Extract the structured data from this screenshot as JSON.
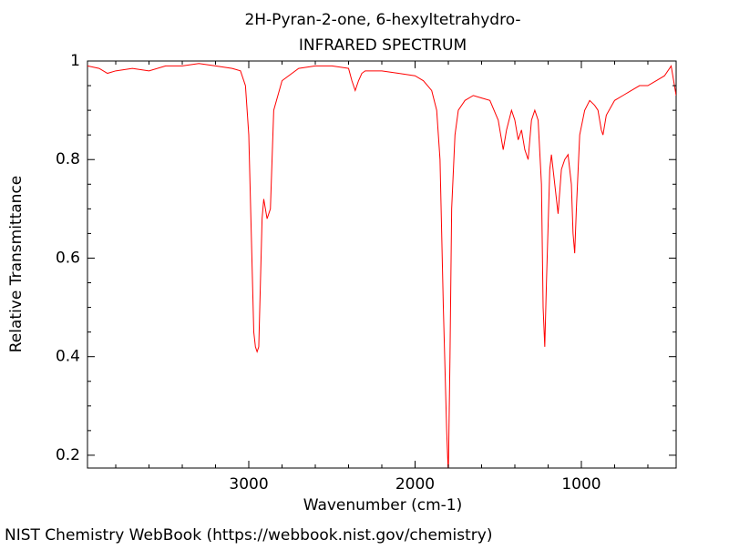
{
  "chart_data": {
    "type": "line",
    "title": "2H-Pyran-2-one, 6-hexyltetrahydro-",
    "subtitle": "INFRARED SPECTRUM",
    "x_label": "Wavenumber (cm-1)",
    "y_label": "Relative Transmittance",
    "footer": "NIST Chemistry WebBook (https://webbook.nist.gov/chemistry)",
    "xlim": [
      3970,
      430
    ],
    "ylim": [
      0.174,
      1
    ],
    "xticks": [
      3000,
      2000,
      1000
    ],
    "yticks": [
      0.2,
      0.4,
      0.6,
      0.8,
      1
    ],
    "xminorticks": [
      3800,
      3600,
      3400,
      3200,
      2800,
      2600,
      2400,
      2200,
      1800,
      1600,
      1400,
      1200,
      800,
      600
    ],
    "yminorticks": [
      0.25,
      0.3,
      0.35,
      0.45,
      0.5,
      0.55,
      0.65,
      0.7,
      0.75,
      0.85,
      0.9,
      0.95
    ],
    "series": [
      {
        "color": "#ff0000",
        "x": [
          3970,
          3900,
          3850,
          3800,
          3700,
          3600,
          3500,
          3400,
          3300,
          3200,
          3100,
          3050,
          3020,
          3000,
          2985,
          2970,
          2960,
          2950,
          2940,
          2930,
          2920,
          2910,
          2900,
          2890,
          2870,
          2860,
          2850,
          2800,
          2700,
          2600,
          2500,
          2400,
          2380,
          2360,
          2340,
          2320,
          2300,
          2200,
          2100,
          2000,
          1950,
          1900,
          1870,
          1850,
          1830,
          1810,
          1800,
          1790,
          1780,
          1760,
          1740,
          1700,
          1650,
          1600,
          1550,
          1500,
          1470,
          1450,
          1420,
          1400,
          1380,
          1360,
          1340,
          1320,
          1300,
          1280,
          1260,
          1240,
          1230,
          1220,
          1210,
          1190,
          1180,
          1160,
          1140,
          1120,
          1100,
          1080,
          1060,
          1050,
          1040,
          1030,
          1010,
          980,
          950,
          920,
          900,
          880,
          870,
          850,
          800,
          750,
          700,
          650,
          600,
          550,
          500,
          460,
          430
        ],
        "values": [
          0.99,
          0.985,
          0.975,
          0.98,
          0.985,
          0.98,
          0.99,
          0.99,
          0.995,
          0.99,
          0.985,
          0.98,
          0.95,
          0.85,
          0.65,
          0.45,
          0.42,
          0.41,
          0.42,
          0.55,
          0.68,
          0.72,
          0.7,
          0.68,
          0.7,
          0.8,
          0.9,
          0.96,
          0.985,
          0.99,
          0.99,
          0.985,
          0.96,
          0.94,
          0.96,
          0.975,
          0.98,
          0.98,
          0.975,
          0.97,
          0.96,
          0.94,
          0.9,
          0.8,
          0.5,
          0.25,
          0.16,
          0.4,
          0.7,
          0.85,
          0.9,
          0.92,
          0.93,
          0.925,
          0.92,
          0.88,
          0.82,
          0.86,
          0.9,
          0.88,
          0.84,
          0.86,
          0.82,
          0.8,
          0.88,
          0.9,
          0.88,
          0.75,
          0.5,
          0.42,
          0.55,
          0.78,
          0.81,
          0.75,
          0.69,
          0.78,
          0.8,
          0.81,
          0.75,
          0.65,
          0.61,
          0.7,
          0.85,
          0.9,
          0.92,
          0.91,
          0.9,
          0.86,
          0.85,
          0.89,
          0.92,
          0.93,
          0.94,
          0.95,
          0.95,
          0.96,
          0.97,
          0.99,
          0.93
        ]
      }
    ]
  }
}
